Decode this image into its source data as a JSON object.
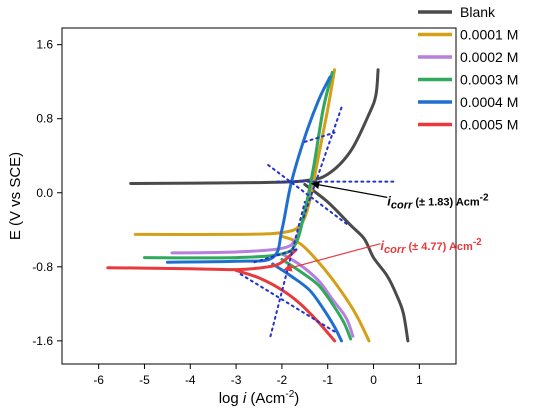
{
  "chart_data": {
    "type": "line",
    "xlabel_prefix": "log ",
    "xlabel_var": "i",
    "xlabel_suffix": " (Acm",
    "xlabel_sup": "-2",
    "xlabel_close": ")",
    "ylabel": "E (V vs SCE)",
    "xlim": [
      -6.8,
      1.8
    ],
    "ylim": [
      -1.85,
      1.78
    ],
    "x_ticks": [
      -6,
      -5,
      -4,
      -3,
      -2,
      -1,
      0,
      1
    ],
    "y_ticks": [
      -1.6,
      -0.8,
      0.0,
      0.8,
      1.6
    ],
    "y_tick_labels": [
      "-1.6",
      "-0.8",
      "0.0",
      "0.8",
      "1.6"
    ],
    "grid": false,
    "legend_placement": "top-right",
    "series": [
      {
        "name": "Blank",
        "color": "#4a4a4a",
        "anodic": [
          [
            -5.3,
            0.1
          ],
          [
            -2.5,
            0.11
          ],
          [
            -1.5,
            0.13
          ],
          [
            -1.0,
            0.2
          ],
          [
            -0.5,
            0.45
          ],
          [
            -0.1,
            0.85
          ],
          [
            0.05,
            1.05
          ],
          [
            0.1,
            1.33
          ]
        ],
        "cathodic": [
          [
            -1.5,
            0.09
          ],
          [
            -1.0,
            -0.1
          ],
          [
            -0.5,
            -0.35
          ],
          [
            -0.2,
            -0.5
          ],
          [
            0.0,
            -0.7
          ],
          [
            0.3,
            -0.9
          ],
          [
            0.5,
            -1.1
          ],
          [
            0.65,
            -1.3
          ],
          [
            0.75,
            -1.6
          ]
        ]
      },
      {
        "name": "0.0001 M",
        "color": "#d4a017",
        "anodic": [
          [
            -5.2,
            -0.45
          ],
          [
            -3.0,
            -0.45
          ],
          [
            -2.0,
            -0.43
          ],
          [
            -1.6,
            -0.35
          ],
          [
            -1.4,
            -0.1
          ],
          [
            -1.2,
            0.4
          ],
          [
            -1.0,
            0.9
          ],
          [
            -0.85,
            1.33
          ]
        ],
        "cathodic": [
          [
            -2.0,
            -0.47
          ],
          [
            -1.6,
            -0.55
          ],
          [
            -1.2,
            -0.75
          ],
          [
            -0.8,
            -1.0
          ],
          [
            -0.4,
            -1.3
          ],
          [
            -0.1,
            -1.6
          ]
        ]
      },
      {
        "name": "0.0002 M",
        "color": "#b77fde",
        "anodic": [
          [
            -4.4,
            -0.65
          ],
          [
            -3.0,
            -0.64
          ],
          [
            -2.0,
            -0.6
          ],
          [
            -1.7,
            -0.5
          ],
          [
            -1.5,
            -0.2
          ],
          [
            -1.3,
            0.3
          ],
          [
            -1.1,
            0.9
          ],
          [
            -0.9,
            1.3
          ]
        ],
        "cathodic": [
          [
            -2.0,
            -0.66
          ],
          [
            -1.6,
            -0.78
          ],
          [
            -1.2,
            -0.95
          ],
          [
            -0.9,
            -1.15
          ],
          [
            -0.6,
            -1.35
          ],
          [
            -0.45,
            -1.55
          ]
        ]
      },
      {
        "name": "0.0003 M",
        "color": "#2eaa5a",
        "anodic": [
          [
            -5.0,
            -0.7
          ],
          [
            -3.0,
            -0.7
          ],
          [
            -2.0,
            -0.66
          ],
          [
            -1.7,
            -0.55
          ],
          [
            -1.5,
            -0.2
          ],
          [
            -1.3,
            0.3
          ],
          [
            -1.1,
            0.9
          ],
          [
            -0.9,
            1.3
          ]
        ],
        "cathodic": [
          [
            -2.0,
            -0.72
          ],
          [
            -1.6,
            -0.85
          ],
          [
            -1.2,
            -1.0
          ],
          [
            -0.9,
            -1.2
          ],
          [
            -0.65,
            -1.4
          ],
          [
            -0.5,
            -1.58
          ]
        ]
      },
      {
        "name": "0.0004 M",
        "color": "#1f6fd1",
        "anodic": [
          [
            -4.5,
            -0.75
          ],
          [
            -3.0,
            -0.74
          ],
          [
            -2.2,
            -0.7
          ],
          [
            -2.0,
            -0.4
          ],
          [
            -1.8,
            0.1
          ],
          [
            -1.5,
            0.6
          ],
          [
            -1.2,
            1.0
          ],
          [
            -0.95,
            1.25
          ]
        ],
        "cathodic": [
          [
            -2.2,
            -0.77
          ],
          [
            -1.8,
            -0.9
          ],
          [
            -1.4,
            -1.05
          ],
          [
            -1.1,
            -1.25
          ],
          [
            -0.85,
            -1.45
          ],
          [
            -0.7,
            -1.6
          ]
        ]
      },
      {
        "name": "0.0005 M",
        "color": "#e8393c",
        "anodic": [
          [
            -5.8,
            -0.81
          ],
          [
            -4.0,
            -0.82
          ],
          [
            -3.0,
            -0.83
          ],
          [
            -2.3,
            -0.8
          ],
          [
            -2.0,
            -0.75
          ],
          [
            -1.7,
            -0.62
          ]
        ],
        "cathodic": [
          [
            -3.0,
            -0.84
          ],
          [
            -2.5,
            -0.92
          ],
          [
            -2.0,
            -1.05
          ],
          [
            -1.6,
            -1.2
          ],
          [
            -1.2,
            -1.4
          ],
          [
            -0.85,
            -1.6
          ]
        ]
      }
    ],
    "tafel_lines": [
      {
        "color": "#2233cc",
        "points": [
          [
            -2.3,
            0.3
          ],
          [
            -0.55,
            -0.35
          ]
        ]
      },
      {
        "color": "#2233cc",
        "points": [
          [
            -1.5,
            0.55
          ],
          [
            -0.85,
            0.65
          ]
        ]
      },
      {
        "color": "#2233cc",
        "points": [
          [
            -0.7,
            0.92
          ],
          [
            -1.55,
            -0.3
          ]
        ]
      },
      {
        "color": "#2233cc",
        "points": [
          [
            -2.1,
            0.12
          ],
          [
            0.5,
            0.12
          ]
        ]
      },
      {
        "color": "#2233cc",
        "points": [
          [
            -2.25,
            -1.55
          ],
          [
            -1.5,
            -0.1
          ]
        ]
      },
      {
        "color": "#2233cc",
        "points": [
          [
            -2.9,
            -0.88
          ],
          [
            -0.85,
            -1.5
          ]
        ]
      },
      {
        "color": "#2233cc",
        "points": [
          [
            -2.6,
            -0.75
          ],
          [
            -1.6,
            -0.6
          ]
        ]
      }
    ],
    "annotations": [
      {
        "label_main": "i",
        "label_sub": "corr",
        "label_rest": " (± 1.83) Acm",
        "label_sup": "-2",
        "color": "#000000",
        "text_at": [
          0.3,
          -0.14
        ],
        "arrow_from": [
          0.3,
          -0.05
        ],
        "arrow_to": [
          -1.35,
          0.1
        ]
      },
      {
        "label_main": "i",
        "label_sub": "corr",
        "label_rest": " (± 4.77) Acm",
        "label_sup": "-2",
        "color": "#e8393c",
        "text_at": [
          0.15,
          -0.62
        ],
        "arrow_from": [
          0.15,
          -0.55
        ],
        "arrow_to": [
          -1.95,
          -0.83
        ]
      }
    ]
  }
}
